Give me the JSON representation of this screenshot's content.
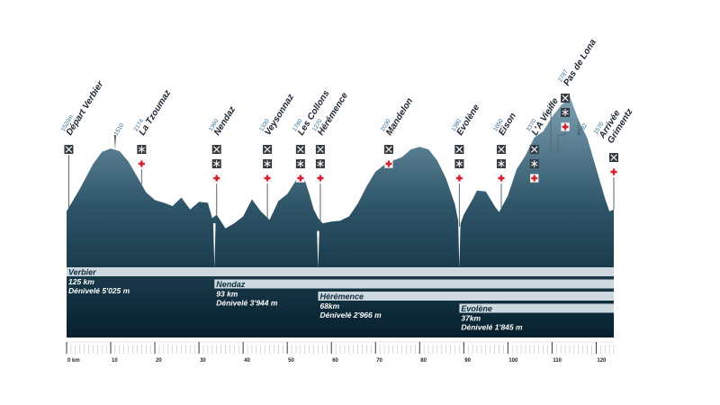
{
  "chart_data": {
    "type": "area",
    "x_unit": "km",
    "xlim": [
      0,
      124
    ],
    "ylim": [
      900,
      3100
    ],
    "x_ticks": [
      0,
      10,
      20,
      30,
      40,
      50,
      60,
      70,
      80,
      90,
      100,
      110,
      120
    ],
    "x_tick_labels": [
      "0 km",
      "10",
      "20",
      "30",
      "40",
      "50",
      "60",
      "70",
      "80",
      "90",
      "100",
      "110",
      "120"
    ],
    "profile": [
      [
        0,
        1500
      ],
      [
        3,
        1760
      ],
      [
        6,
        2050
      ],
      [
        8,
        2190
      ],
      [
        10,
        2230
      ],
      [
        12,
        2200
      ],
      [
        14,
        2080
      ],
      [
        16,
        1900
      ],
      [
        18,
        1720
      ],
      [
        20,
        1630
      ],
      [
        22,
        1600
      ],
      [
        24,
        1560
      ],
      [
        26,
        1660
      ],
      [
        28,
        1520
      ],
      [
        30,
        1610
      ],
      [
        32,
        1600
      ],
      [
        33,
        1420
      ],
      [
        34,
        1460
      ],
      [
        36,
        1300
      ],
      [
        38,
        1360
      ],
      [
        40,
        1440
      ],
      [
        42,
        1640
      ],
      [
        44,
        1500
      ],
      [
        46,
        1400
      ],
      [
        48,
        1620
      ],
      [
        50,
        1700
      ],
      [
        52,
        1860
      ],
      [
        54,
        1860
      ],
      [
        55,
        1700
      ],
      [
        56,
        1520
      ],
      [
        57,
        1420
      ],
      [
        58,
        1360
      ],
      [
        60,
        1380
      ],
      [
        62,
        1390
      ],
      [
        64,
        1440
      ],
      [
        66,
        1590
      ],
      [
        68,
        1790
      ],
      [
        70,
        1960
      ],
      [
        72,
        2040
      ],
      [
        74,
        2090
      ],
      [
        76,
        2130
      ],
      [
        78,
        2220
      ],
      [
        80,
        2250
      ],
      [
        82,
        2220
      ],
      [
        84,
        2090
      ],
      [
        86,
        1880
      ],
      [
        88,
        1580
      ],
      [
        89,
        1320
      ],
      [
        90,
        1460
      ],
      [
        92,
        1640
      ],
      [
        93,
        1740
      ],
      [
        95,
        1730
      ],
      [
        97,
        1560
      ],
      [
        98,
        1490
      ],
      [
        100,
        1680
      ],
      [
        102,
        1990
      ],
      [
        104,
        2150
      ],
      [
        106,
        2360
      ],
      [
        108,
        2430
      ],
      [
        110,
        2600
      ],
      [
        112,
        2730
      ],
      [
        113,
        2780
      ],
      [
        114,
        2840
      ],
      [
        115,
        2700
      ],
      [
        116,
        2560
      ],
      [
        118,
        2350
      ],
      [
        120,
        2000
      ],
      [
        122,
        1650
      ],
      [
        123,
        1500
      ],
      [
        124,
        1520
      ]
    ],
    "spikes": [
      [
        33.5,
        1360
      ],
      [
        57,
        1270
      ],
      [
        89,
        1380
      ]
    ],
    "waypoints": [
      {
        "km": 0.5,
        "alt": "1520m",
        "name": "Départ Verbier",
        "icons": [
          "food"
        ],
        "leader": true
      },
      {
        "km": 11,
        "alt": "1510",
        "name": "",
        "icons": [],
        "leader": false
      },
      {
        "km": 17,
        "alt": "2174",
        "name": "La Tzoumaz",
        "icons": [
          "water",
          "medic"
        ],
        "leader": true
      },
      {
        "km": 34,
        "alt": "1360",
        "name": "Nendaz",
        "icons": [
          "food",
          "water",
          "medic"
        ],
        "leader": true
      },
      {
        "km": 45.5,
        "alt": "1330",
        "name": "Veysonnaz",
        "icons": [
          "food",
          "water",
          "medic"
        ],
        "leader": true
      },
      {
        "km": 53,
        "alt": "1780",
        "name": "Les Collons",
        "icons": [
          "food",
          "water",
          "medic"
        ],
        "leader": true
      },
      {
        "km": 57.5,
        "alt": "1270",
        "name": "Hérémence",
        "icons": [
          "food",
          "water",
          "medic"
        ],
        "leader": true
      },
      {
        "km": 73,
        "alt": "2030",
        "name": "Mandelon",
        "icons": [
          "food",
          "medic"
        ],
        "leader": true
      },
      {
        "km": 89,
        "alt": "1380",
        "name": "Evolène",
        "icons": [
          "food",
          "water",
          "medic"
        ],
        "leader": true
      },
      {
        "km": 98.5,
        "alt": "1650",
        "name": "Eison",
        "icons": [
          "food",
          "water",
          "medic"
        ],
        "leader": true
      },
      {
        "km": 106,
        "alt": "2370",
        "name": "L'A Vieille",
        "icons": [
          "food",
          "water",
          "medic"
        ],
        "leader": true
      },
      {
        "km": 113,
        "alt": "2787",
        "name": "Pas de Lona",
        "icons": [
          "food",
          "water",
          "medic"
        ],
        "leader": true
      },
      {
        "km": 116,
        "alt": "2792",
        "name": "",
        "icons": [],
        "leader": false
      },
      {
        "km": 124,
        "alt": "1570",
        "name": "Arrivée Grimentz",
        "icons": [
          "food",
          "medic"
        ],
        "leader": true
      }
    ],
    "races": [
      {
        "name": "Verbier",
        "start_km": 0,
        "distance": "125 km",
        "elevation": "Dénivelé 5'025 m"
      },
      {
        "name": "Nendaz",
        "start_km": 33.5,
        "distance": "93 km",
        "elevation": "Dénivelé 3'944 m"
      },
      {
        "name": "Hérémence",
        "start_km": 57,
        "distance": "68km",
        "elevation": "Dénivelé 2'966 m"
      },
      {
        "name": "Evolène",
        "start_km": 89,
        "distance": "37km",
        "elevation": "Dénivelé 1'845 m"
      }
    ],
    "colors": {
      "profile_top": "#7ea1b4",
      "profile_mid": "#2e5568",
      "profile_bottom": "#06202e",
      "bar_fill": "#cdd8df",
      "medic_red": "#d81e2a",
      "icon_dark": "#333a40",
      "altitude_text": "#2f6a8e",
      "label_text": "#1b2430"
    }
  }
}
